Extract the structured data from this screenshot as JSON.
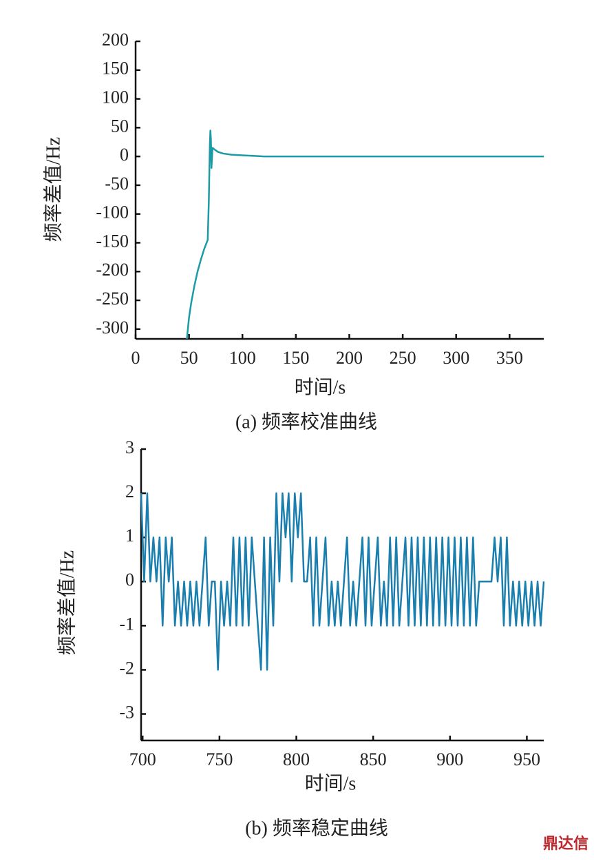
{
  "chart_data": [
    {
      "type": "line",
      "caption": "(a)  频率校准曲线",
      "xlabel": "时间/s",
      "ylabel": "频率差值/Hz",
      "xlim": [
        0,
        382
      ],
      "ylim": [
        -317,
        200
      ],
      "xticks": [
        0,
        50,
        100,
        150,
        200,
        250,
        300,
        350
      ],
      "yticks": [
        200,
        150,
        100,
        50,
        0,
        -50,
        -100,
        -150,
        -200,
        -250,
        -300
      ],
      "color": "#1c9aa6",
      "x": [
        48,
        50,
        52,
        55,
        58,
        61,
        64,
        66,
        67.5,
        68.5,
        69.5,
        70,
        70.5,
        71,
        72,
        74,
        77,
        82,
        90,
        100,
        120,
        150,
        200,
        250,
        300,
        350,
        382
      ],
      "values": [
        -317,
        -280,
        -255,
        -225,
        -200,
        -180,
        -162,
        -152,
        -145,
        -80,
        20,
        45,
        30,
        -20,
        15,
        12,
        8,
        5,
        3,
        2,
        0,
        0,
        0,
        0,
        0,
        0,
        0
      ]
    },
    {
      "type": "line",
      "caption": "(b)  频率稳定曲线",
      "xlabel": "时间/s",
      "ylabel": "频率差值/Hz",
      "xlim": [
        699,
        961
      ],
      "ylim": [
        -3.6,
        3
      ],
      "xticks": [
        700,
        750,
        800,
        850,
        900,
        950
      ],
      "yticks": [
        3,
        2,
        1,
        0,
        -1,
        -2,
        -3
      ],
      "color": "#1a7fae",
      "x": [
        699,
        701,
        703,
        705,
        707,
        709,
        711,
        713,
        715,
        717,
        719,
        721,
        723,
        725,
        727,
        729,
        731,
        733,
        735,
        737,
        739,
        741,
        743,
        745,
        747,
        749,
        751,
        753,
        755,
        757,
        759,
        761,
        763,
        765,
        767,
        769,
        771,
        773,
        775,
        777,
        779,
        781,
        783,
        785,
        787,
        789,
        791,
        793,
        795,
        797,
        799,
        801,
        803,
        805,
        807,
        809,
        811,
        813,
        815,
        817,
        819,
        821,
        823,
        825,
        827,
        829,
        831,
        833,
        835,
        837,
        839,
        841,
        843,
        845,
        847,
        849,
        851,
        853,
        855,
        857,
        859,
        861,
        863,
        865,
        867,
        869,
        871,
        873,
        875,
        877,
        879,
        881,
        883,
        885,
        887,
        889,
        891,
        893,
        895,
        897,
        899,
        901,
        903,
        905,
        907,
        909,
        911,
        913,
        915,
        917,
        919,
        921,
        923,
        925,
        927,
        929,
        931,
        933,
        935,
        937,
        939,
        941,
        943,
        945,
        947,
        949,
        951,
        953,
        955,
        957,
        959,
        961
      ],
      "values": [
        2,
        0,
        2,
        0,
        1,
        0,
        1,
        -1,
        1,
        0,
        1,
        -1,
        0,
        -1,
        0,
        -1,
        0,
        -1,
        0,
        -1,
        0,
        1,
        -1,
        0,
        0,
        -2,
        0,
        -1,
        0,
        -1,
        1,
        -1,
        1,
        -1,
        1,
        -1,
        1,
        0,
        -1,
        -2,
        1,
        -2,
        1,
        -1,
        2,
        0,
        2,
        1,
        2,
        0,
        2,
        1,
        2,
        0,
        0,
        1,
        -1,
        1,
        -1,
        0,
        1,
        -1,
        0,
        -1,
        0,
        -1,
        0,
        1,
        -1,
        0,
        -1,
        0,
        1,
        -1,
        1,
        -1,
        0,
        1,
        -1,
        0,
        -1,
        1,
        -1,
        1,
        -1,
        0,
        1,
        -1,
        1,
        -1,
        1,
        -1,
        1,
        -1,
        1,
        -1,
        1,
        -1,
        1,
        -1,
        1,
        -1,
        1,
        -1,
        1,
        -1,
        1,
        -1,
        1,
        -1,
        0,
        0,
        0,
        0,
        0,
        1,
        0,
        1,
        -1,
        1,
        -1,
        0,
        -1,
        0,
        -1,
        0,
        -1,
        0,
        -1,
        0,
        -1,
        0
      ]
    }
  ],
  "watermark": "鼎达信"
}
